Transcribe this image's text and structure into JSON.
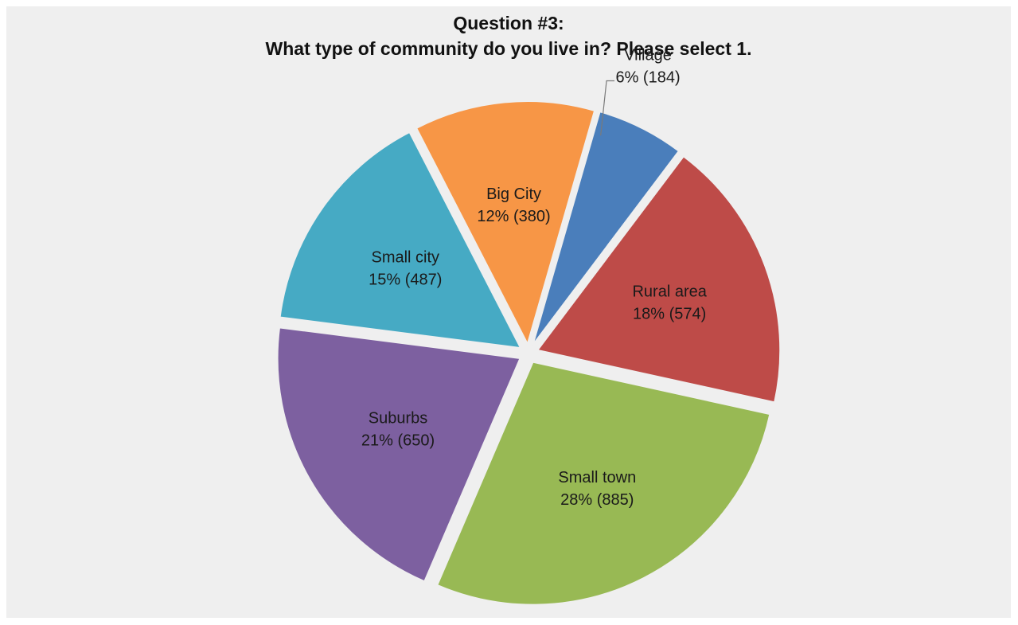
{
  "title_line1": "Question #3:",
  "title_line2": "What type of community do you live in? Please select 1.",
  "chart_data": {
    "type": "pie",
    "title": "Question #3: What type of community do you live in? Please select 1.",
    "slices": [
      {
        "name": "Village",
        "pct_label": "6% (184)",
        "count": 184,
        "color": "#4a7ebb"
      },
      {
        "name": "Rural area",
        "pct_label": "18% (574)",
        "count": 574,
        "color": "#be4b48"
      },
      {
        "name": "Small town",
        "pct_label": "28% (885)",
        "count": 885,
        "color": "#98b954"
      },
      {
        "name": "Suburbs",
        "pct_label": "21% (650)",
        "count": 650,
        "color": "#7d60a0"
      },
      {
        "name": "Small city",
        "pct_label": "15% (487)",
        "count": 487,
        "color": "#46aac4"
      },
      {
        "name": "Big City",
        "pct_label": "12% (380)",
        "count": 380,
        "color": "#f79646"
      }
    ],
    "exploded": true,
    "legend": "none"
  }
}
